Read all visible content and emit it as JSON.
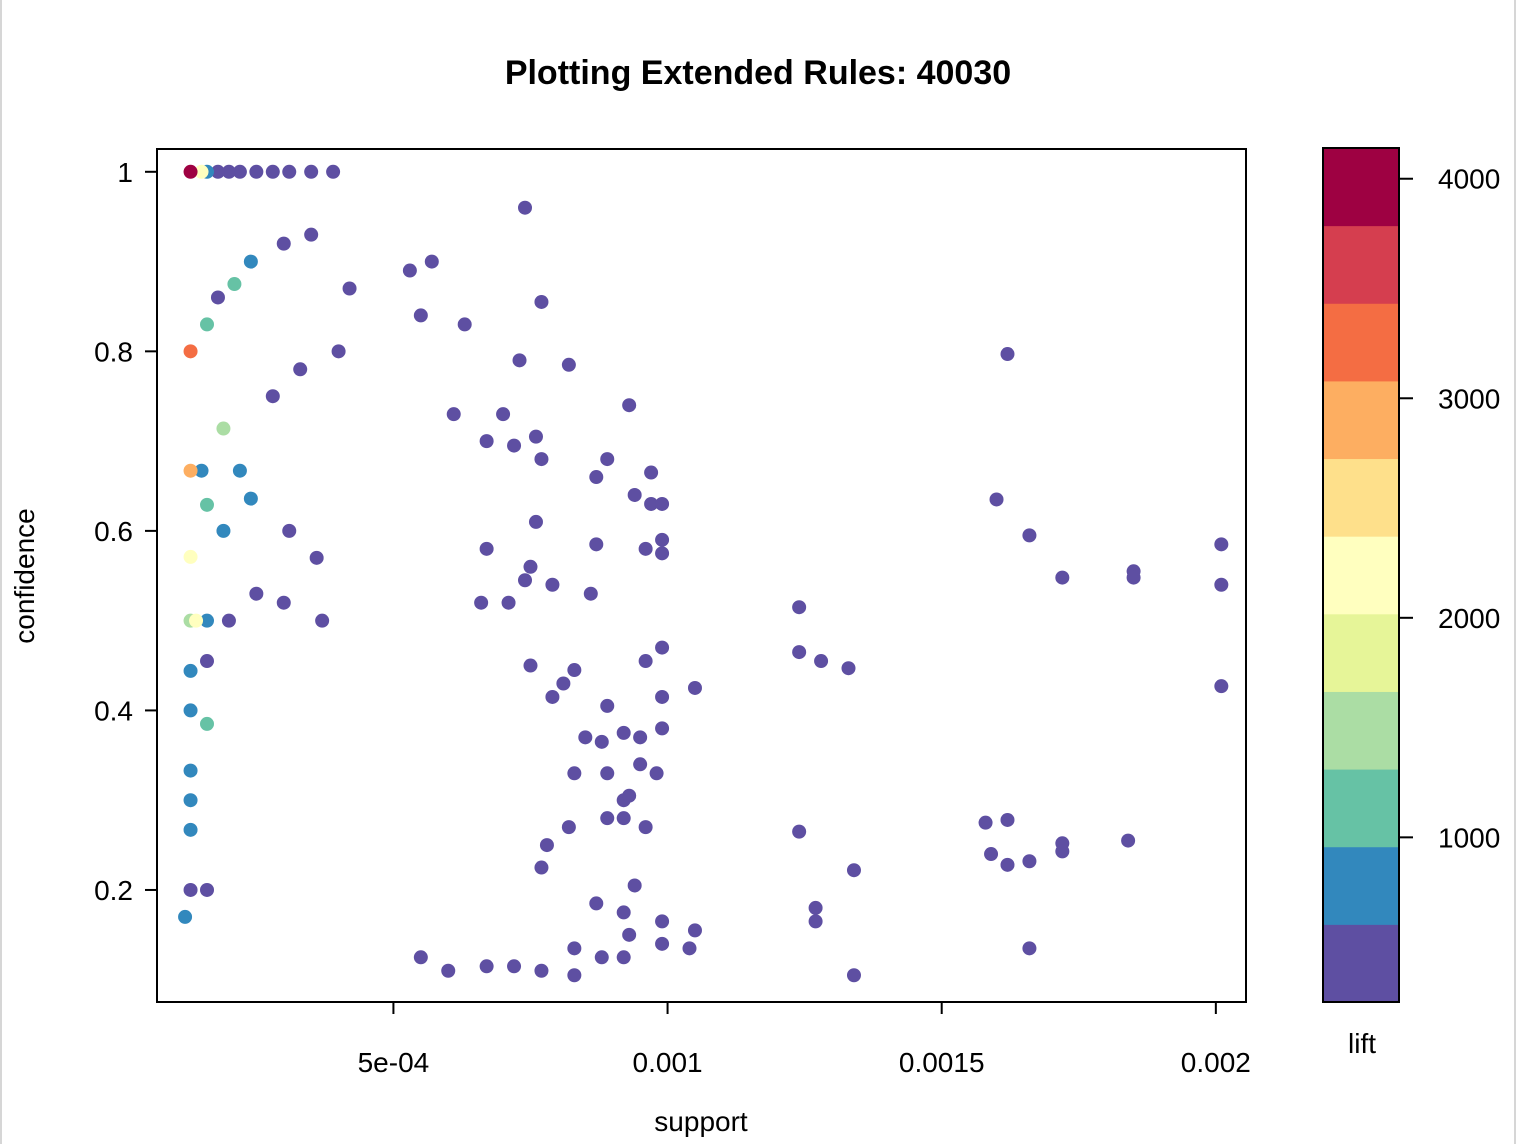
{
  "chart_data": {
    "type": "scatter",
    "title": "Plotting Extended Rules:  40030",
    "xlabel": "support",
    "ylabel": "confidence",
    "xlim": [
      6.88e-05,
      0.002055
    ],
    "ylim": [
      0.0752,
      1.0254
    ],
    "x_ticks": [
      {
        "value": 0.0005,
        "label": "5e-04"
      },
      {
        "value": 0.001,
        "label": "0.001"
      },
      {
        "value": 0.0015,
        "label": "0.0015"
      },
      {
        "value": 0.002,
        "label": "0.002"
      }
    ],
    "y_ticks": [
      {
        "value": 0.2,
        "label": "0.2"
      },
      {
        "value": 0.4,
        "label": "0.4"
      },
      {
        "value": 0.6,
        "label": "0.6"
      },
      {
        "value": 0.8,
        "label": "0.8"
      },
      {
        "value": 1.0,
        "label": "1"
      }
    ],
    "grid": false,
    "color_scale": {
      "label": "lift",
      "min": 250,
      "max": 4140,
      "bands": [
        "#5e4fa2",
        "#3288bd",
        "#66c2a5",
        "#abdda4",
        "#e6f598",
        "#ffffbf",
        "#fee08b",
        "#fdae61",
        "#f46d43",
        "#d53e4f",
        "#9e0142"
      ],
      "ticks": [
        {
          "value": 1000,
          "label": "1000"
        },
        {
          "value": 2000,
          "label": "2000"
        },
        {
          "value": 3000,
          "label": "3000"
        },
        {
          "value": 4000,
          "label": "4000"
        }
      ]
    },
    "points": [
      [
        0.00013,
        1.0,
        3900
      ],
      [
        0.00015,
        1.0,
        2200
      ],
      [
        0.00016,
        1.0,
        800
      ],
      [
        0.00018,
        1.0,
        500
      ],
      [
        0.0002,
        1.0,
        400
      ],
      [
        0.00022,
        1.0,
        350
      ],
      [
        0.00025,
        1.0,
        300
      ],
      [
        0.00028,
        1.0,
        300
      ],
      [
        0.00031,
        1.0,
        300
      ],
      [
        0.00035,
        1.0,
        300
      ],
      [
        0.00039,
        1.0,
        300
      ],
      [
        0.00013,
        0.8,
        3200
      ],
      [
        0.00016,
        0.83,
        1300
      ],
      [
        0.00018,
        0.86,
        350
      ],
      [
        0.00021,
        0.875,
        1100
      ],
      [
        0.00024,
        0.9,
        700
      ],
      [
        0.0003,
        0.92,
        300
      ],
      [
        0.00035,
        0.93,
        300
      ],
      [
        0.00013,
        0.667,
        2800
      ],
      [
        0.00015,
        0.667,
        700
      ],
      [
        0.00019,
        0.714,
        1500
      ],
      [
        0.00022,
        0.667,
        700
      ],
      [
        0.00028,
        0.75,
        300
      ],
      [
        0.00033,
        0.78,
        300
      ],
      [
        0.0004,
        0.8,
        300
      ],
      [
        0.00013,
        0.571,
        2100
      ],
      [
        0.00016,
        0.629,
        1300
      ],
      [
        0.00019,
        0.6,
        800
      ],
      [
        0.00024,
        0.636,
        800
      ],
      [
        0.00031,
        0.6,
        300
      ],
      [
        0.00036,
        0.57,
        300
      ],
      [
        0.00013,
        0.5,
        1600
      ],
      [
        0.00014,
        0.5,
        2300
      ],
      [
        0.00016,
        0.5,
        900
      ],
      [
        0.0002,
        0.5,
        500
      ],
      [
        0.00025,
        0.53,
        300
      ],
      [
        0.0003,
        0.52,
        300
      ],
      [
        0.00037,
        0.5,
        300
      ],
      [
        0.00013,
        0.444,
        800
      ],
      [
        0.00016,
        0.455,
        500
      ],
      [
        0.00013,
        0.4,
        700
      ],
      [
        0.00016,
        0.385,
        1300
      ],
      [
        0.00013,
        0.333,
        800
      ],
      [
        0.00013,
        0.3,
        800
      ],
      [
        0.00013,
        0.267,
        800
      ],
      [
        0.00016,
        0.2,
        600
      ],
      [
        0.00013,
        0.2,
        600
      ],
      [
        0.00012,
        0.17,
        800
      ],
      [
        0.00042,
        0.87,
        300
      ],
      [
        0.00053,
        0.89,
        300
      ],
      [
        0.00057,
        0.9,
        300
      ],
      [
        0.00074,
        0.96,
        300
      ],
      [
        0.00077,
        0.855,
        300
      ],
      [
        0.00063,
        0.83,
        300
      ],
      [
        0.00055,
        0.84,
        300
      ],
      [
        0.00073,
        0.79,
        300
      ],
      [
        0.00082,
        0.785,
        300
      ],
      [
        0.00061,
        0.73,
        300
      ],
      [
        0.00067,
        0.7,
        300
      ],
      [
        0.0007,
        0.73,
        300
      ],
      [
        0.00072,
        0.695,
        300
      ],
      [
        0.00076,
        0.705,
        300
      ],
      [
        0.00077,
        0.68,
        300
      ],
      [
        0.00087,
        0.66,
        300
      ],
      [
        0.00089,
        0.68,
        300
      ],
      [
        0.00093,
        0.74,
        300
      ],
      [
        0.00094,
        0.64,
        300
      ],
      [
        0.00097,
        0.665,
        300
      ],
      [
        0.00097,
        0.63,
        300
      ],
      [
        0.00099,
        0.63,
        300
      ],
      [
        0.00099,
        0.59,
        300
      ],
      [
        0.00099,
        0.575,
        300
      ],
      [
        0.00096,
        0.58,
        300
      ],
      [
        0.00076,
        0.61,
        300
      ],
      [
        0.00087,
        0.585,
        300
      ],
      [
        0.00079,
        0.54,
        300
      ],
      [
        0.00086,
        0.53,
        300
      ],
      [
        0.00075,
        0.56,
        300
      ],
      [
        0.00074,
        0.545,
        300
      ],
      [
        0.00067,
        0.58,
        300
      ],
      [
        0.00066,
        0.52,
        300
      ],
      [
        0.00071,
        0.52,
        300
      ],
      [
        0.00099,
        0.47,
        300
      ],
      [
        0.00096,
        0.455,
        300
      ],
      [
        0.00105,
        0.425,
        300
      ],
      [
        0.00099,
        0.415,
        300
      ],
      [
        0.00089,
        0.405,
        300
      ],
      [
        0.00081,
        0.43,
        300
      ],
      [
        0.00079,
        0.415,
        300
      ],
      [
        0.00083,
        0.445,
        300
      ],
      [
        0.00075,
        0.45,
        300
      ],
      [
        0.00085,
        0.37,
        300
      ],
      [
        0.00088,
        0.365,
        300
      ],
      [
        0.00092,
        0.375,
        300
      ],
      [
        0.00095,
        0.37,
        300
      ],
      [
        0.00099,
        0.38,
        300
      ],
      [
        0.00098,
        0.33,
        300
      ],
      [
        0.00095,
        0.34,
        300
      ],
      [
        0.00089,
        0.33,
        300
      ],
      [
        0.00083,
        0.33,
        300
      ],
      [
        0.00092,
        0.3,
        300
      ],
      [
        0.00093,
        0.305,
        300
      ],
      [
        0.00089,
        0.28,
        300
      ],
      [
        0.00092,
        0.28,
        300
      ],
      [
        0.00096,
        0.27,
        300
      ],
      [
        0.00082,
        0.27,
        300
      ],
      [
        0.00078,
        0.25,
        300
      ],
      [
        0.00077,
        0.225,
        300
      ],
      [
        0.00094,
        0.205,
        300
      ],
      [
        0.00087,
        0.185,
        300
      ],
      [
        0.00092,
        0.175,
        300
      ],
      [
        0.00099,
        0.165,
        300
      ],
      [
        0.00105,
        0.155,
        300
      ],
      [
        0.00093,
        0.15,
        300
      ],
      [
        0.00099,
        0.14,
        300
      ],
      [
        0.00104,
        0.135,
        300
      ],
      [
        0.00092,
        0.125,
        300
      ],
      [
        0.00088,
        0.125,
        300
      ],
      [
        0.00083,
        0.135,
        300
      ],
      [
        0.00083,
        0.105,
        300
      ],
      [
        0.00077,
        0.11,
        300
      ],
      [
        0.00072,
        0.115,
        300
      ],
      [
        0.00067,
        0.115,
        300
      ],
      [
        0.0006,
        0.11,
        300
      ],
      [
        0.00055,
        0.125,
        300
      ],
      [
        0.00124,
        0.515,
        300
      ],
      [
        0.00124,
        0.465,
        300
      ],
      [
        0.00128,
        0.455,
        300
      ],
      [
        0.00133,
        0.447,
        300
      ],
      [
        0.00124,
        0.265,
        300
      ],
      [
        0.00127,
        0.18,
        300
      ],
      [
        0.00127,
        0.165,
        300
      ],
      [
        0.00134,
        0.222,
        300
      ],
      [
        0.00134,
        0.105,
        300
      ],
      [
        0.00162,
        0.797,
        300
      ],
      [
        0.0016,
        0.635,
        300
      ],
      [
        0.00166,
        0.595,
        300
      ],
      [
        0.00172,
        0.548,
        300
      ],
      [
        0.00185,
        0.555,
        300
      ],
      [
        0.00185,
        0.548,
        300
      ],
      [
        0.00201,
        0.585,
        300
      ],
      [
        0.00201,
        0.54,
        300
      ],
      [
        0.00201,
        0.427,
        300
      ],
      [
        0.00158,
        0.275,
        300
      ],
      [
        0.00162,
        0.278,
        300
      ],
      [
        0.00159,
        0.24,
        300
      ],
      [
        0.00162,
        0.228,
        300
      ],
      [
        0.00166,
        0.232,
        300
      ],
      [
        0.00172,
        0.252,
        300
      ],
      [
        0.00172,
        0.243,
        300
      ],
      [
        0.00184,
        0.255,
        300
      ],
      [
        0.00166,
        0.135,
        300
      ]
    ]
  }
}
